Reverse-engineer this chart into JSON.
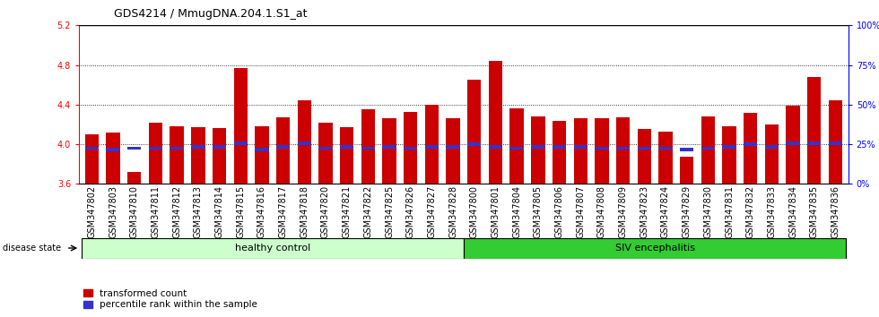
{
  "title": "GDS4214 / MmugDNA.204.1.S1_at",
  "samples": [
    "GSM347802",
    "GSM347803",
    "GSM347810",
    "GSM347811",
    "GSM347812",
    "GSM347813",
    "GSM347814",
    "GSM347815",
    "GSM347816",
    "GSM347817",
    "GSM347818",
    "GSM347820",
    "GSM347821",
    "GSM347822",
    "GSM347825",
    "GSM347826",
    "GSM347827",
    "GSM347828",
    "GSM347800",
    "GSM347801",
    "GSM347804",
    "GSM347805",
    "GSM347806",
    "GSM347807",
    "GSM347808",
    "GSM347809",
    "GSM347823",
    "GSM347824",
    "GSM347829",
    "GSM347830",
    "GSM347831",
    "GSM347832",
    "GSM347833",
    "GSM347834",
    "GSM347835",
    "GSM347836"
  ],
  "red_values": [
    4.1,
    4.12,
    3.72,
    4.22,
    4.18,
    4.17,
    4.16,
    4.77,
    4.18,
    4.27,
    4.44,
    4.22,
    4.17,
    4.35,
    4.26,
    4.33,
    4.4,
    4.26,
    4.65,
    4.84,
    4.36,
    4.28,
    4.24,
    4.26,
    4.26,
    4.27,
    4.15,
    4.13,
    3.87,
    4.28,
    4.18,
    4.32,
    4.2,
    4.39,
    4.68,
    4.44
  ],
  "blue_values": [
    3.96,
    3.95,
    3.96,
    3.96,
    3.96,
    3.97,
    3.97,
    4.01,
    3.95,
    3.97,
    4.01,
    3.96,
    3.97,
    3.96,
    3.97,
    3.96,
    3.97,
    3.97,
    4.0,
    3.97,
    3.96,
    3.97,
    3.97,
    3.97,
    3.96,
    3.96,
    3.96,
    3.96,
    3.95,
    3.96,
    3.97,
    4.0,
    3.97,
    4.01,
    4.01,
    4.01
  ],
  "ylim_left": [
    3.6,
    5.2
  ],
  "yticks_left": [
    3.6,
    4.0,
    4.4,
    4.8,
    5.2
  ],
  "ylim_right": [
    0,
    100
  ],
  "yticks_right": [
    0,
    25,
    50,
    75,
    100
  ],
  "ytick_labels_right": [
    "0%",
    "25%",
    "50%",
    "75%",
    "100%"
  ],
  "bar_color": "#cc0000",
  "blue_color": "#3333cc",
  "bar_width": 0.65,
  "healthy_count": 18,
  "healthy_label": "healthy control",
  "siv_label": "SIV encephalitis",
  "disease_state_label": "disease state",
  "healthy_color": "#ccffcc",
  "siv_color": "#33cc33",
  "legend_red": "transformed count",
  "legend_blue": "percentile rank within the sample",
  "baseline": 3.6,
  "blue_bar_height": 0.035,
  "title_fontsize": 9,
  "tick_fontsize": 7,
  "label_fontsize": 8
}
